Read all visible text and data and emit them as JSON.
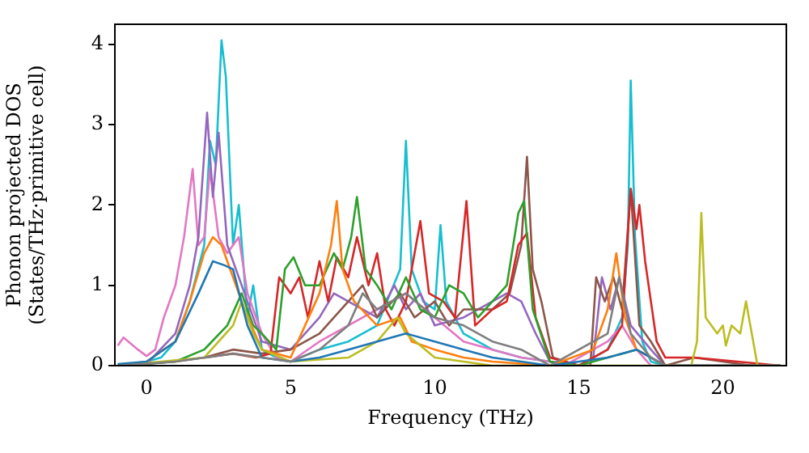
{
  "chart_data": {
    "type": "line",
    "xlabel": "Frequency (THz)",
    "ylabel": "Phonon projected DOS\n(States/THz·primitive cell)",
    "xlim": [
      -1.1,
      22.2
    ],
    "xticks": [
      0,
      5,
      10,
      15,
      20
    ],
    "ylim": [
      0,
      4.25
    ],
    "yticks": [
      0,
      1,
      2,
      3,
      4
    ],
    "grid": false,
    "legend": false,
    "marker": "none",
    "line_style": "solid",
    "series": [
      {
        "color": "#7f7f7f",
        "x": [
          -1,
          1,
          2,
          3,
          4,
          5,
          6,
          7,
          7.5,
          8,
          9,
          10,
          11,
          12,
          13,
          14,
          16,
          16.4,
          16.8,
          17.5,
          18,
          22
        ],
        "values": [
          0,
          0.05,
          0.1,
          0.15,
          0.1,
          0.05,
          0.2,
          0.5,
          0.9,
          0.7,
          0.9,
          0.6,
          0.5,
          0.3,
          0.2,
          0,
          0.4,
          1.1,
          0.4,
          0.1,
          0,
          0
        ]
      },
      {
        "color": "#1f77b4",
        "x": [
          -1,
          0,
          1,
          1.8,
          2.3,
          2.7,
          3,
          3.5,
          4,
          5,
          6,
          7,
          8,
          9,
          10,
          11,
          12,
          14,
          16,
          17,
          18,
          22
        ],
        "values": [
          0.02,
          0.05,
          0.3,
          0.9,
          1.3,
          1.25,
          1.2,
          0.5,
          0.1,
          0.05,
          0.1,
          0.2,
          0.3,
          0.4,
          0.3,
          0.2,
          0.1,
          0,
          0.1,
          0.2,
          0,
          0
        ]
      },
      {
        "color": "#bcbd22",
        "x": [
          -1,
          2,
          3,
          3.3,
          3.7,
          4,
          5,
          7,
          8,
          8.7,
          9,
          10,
          12,
          18.9,
          19.1,
          19.25,
          19.4,
          19.8,
          20,
          20.1,
          20.3,
          20.6,
          20.8,
          21,
          21.2,
          22
        ],
        "values": [
          0,
          0.1,
          0.5,
          0.8,
          0.4,
          0.2,
          0.05,
          0.1,
          0.3,
          0.6,
          0.4,
          0.1,
          0,
          0,
          0.3,
          1.9,
          0.6,
          0.4,
          0.5,
          0.25,
          0.5,
          0.4,
          0.8,
          0.4,
          0,
          0
        ]
      },
      {
        "color": "#ff7f0e",
        "x": [
          -1,
          0,
          1,
          1.5,
          2,
          2.3,
          2.6,
          3,
          3.4,
          4,
          5,
          6,
          6.4,
          6.6,
          6.8,
          7.2,
          8,
          8.8,
          9.2,
          10,
          11,
          12,
          14,
          15.5,
          16,
          16.3,
          16.6,
          17,
          18,
          22
        ],
        "values": [
          0,
          0.05,
          0.3,
          0.8,
          1.4,
          1.6,
          1.5,
          1.1,
          0.7,
          0.2,
          0.1,
          0.9,
          1.5,
          2.05,
          1.2,
          0.8,
          0.5,
          0.6,
          0.3,
          0.2,
          0.1,
          0.05,
          0,
          0.2,
          0.7,
          1.4,
          0.6,
          0.2,
          0,
          0
        ]
      },
      {
        "color": "#2ca02c",
        "x": [
          -1,
          1,
          2,
          2.8,
          3.3,
          3.7,
          4,
          4.5,
          4.8,
          5.1,
          5.5,
          6,
          6.5,
          6.8,
          7.1,
          7.3,
          7.6,
          8,
          8.5,
          9,
          9.5,
          10,
          10.5,
          11,
          11.5,
          12,
          12.5,
          12.9,
          13.1,
          13.4,
          14,
          15,
          16,
          17,
          18,
          22
        ],
        "values": [
          0,
          0.05,
          0.2,
          0.5,
          0.9,
          0.5,
          0.4,
          0.2,
          1.2,
          1.35,
          1.0,
          1.0,
          1.4,
          1.2,
          1.6,
          2.1,
          1.2,
          1.0,
          0.7,
          1.1,
          0.7,
          0.6,
          1.0,
          0.9,
          0.6,
          0.8,
          1.0,
          1.9,
          2.05,
          0.7,
          0.05,
          0,
          0.1,
          0.2,
          0,
          0
        ]
      },
      {
        "color": "#d62728",
        "x": [
          2,
          3,
          3.8,
          4.3,
          4.6,
          5,
          5.3,
          5.6,
          6,
          6.3,
          6.6,
          7,
          7.3,
          7.7,
          8,
          8.3,
          8.6,
          9,
          9.5,
          9.8,
          10.3,
          10.7,
          11.1,
          11.4,
          12,
          12.5,
          12.9,
          13.2,
          13.5,
          14,
          15,
          16,
          16.5,
          16.8,
          17,
          17.1,
          17.3,
          17.7,
          18,
          19,
          22
        ],
        "values": [
          0.1,
          0.15,
          0.1,
          0.15,
          1.1,
          0.9,
          1.1,
          0.6,
          1.3,
          0.8,
          1.35,
          1.1,
          1.6,
          1.0,
          1.4,
          0.7,
          0.5,
          0.8,
          1.8,
          0.9,
          0.8,
          0.6,
          2.05,
          0.5,
          0.7,
          0.8,
          1.5,
          1.65,
          0.6,
          0.1,
          0,
          0.2,
          0.5,
          2.2,
          1.7,
          2.0,
          1.3,
          0.3,
          0.1,
          0.1,
          0
        ]
      },
      {
        "color": "#8c564b",
        "x": [
          -1,
          0,
          1,
          2,
          3,
          4,
          5,
          6,
          7,
          7.5,
          8,
          8.8,
          9.3,
          10,
          10.5,
          11,
          12,
          12.6,
          13,
          13.2,
          13.4,
          13.7,
          14.1,
          15,
          15.4,
          15.6,
          15.9,
          16.2,
          16.5,
          16.8,
          17.1,
          17.5,
          18,
          19,
          21,
          22
        ],
        "values": [
          0,
          0.02,
          0.05,
          0.1,
          0.2,
          0.15,
          0.2,
          0.4,
          0.8,
          1.0,
          0.6,
          0.9,
          0.6,
          0.8,
          0.5,
          0.7,
          0.7,
          0.9,
          1.5,
          2.6,
          1.2,
          0.8,
          0.1,
          0,
          0,
          1.1,
          0.8,
          1.1,
          0.7,
          2.2,
          0.5,
          0.3,
          0,
          0.1,
          0,
          0
        ]
      },
      {
        "color": "#9467bd",
        "x": [
          -1,
          0,
          1,
          1.5,
          1.8,
          2.1,
          2.3,
          2.5,
          2.8,
          3.1,
          3.5,
          4,
          5,
          6,
          6.5,
          7,
          8,
          8.6,
          9,
          9.5,
          10,
          11,
          12,
          12.5,
          13,
          13.5,
          14,
          15,
          15.5,
          15.8,
          16.1,
          16.4,
          16.8,
          17.5,
          18,
          22
        ],
        "values": [
          0,
          0.02,
          0.4,
          1.0,
          1.6,
          3.15,
          2.1,
          2.9,
          1.5,
          1.2,
          0.8,
          0.3,
          0.2,
          0.6,
          0.9,
          0.8,
          0.6,
          1.0,
          0.7,
          0.9,
          0.5,
          0.6,
          0.8,
          0.9,
          0.8,
          0.4,
          0.05,
          0,
          0.1,
          1.1,
          0.7,
          1.1,
          0.5,
          0.2,
          0,
          0
        ]
      },
      {
        "color": "#e377c2",
        "x": [
          -1,
          -0.8,
          -0.3,
          0,
          0.3,
          0.6,
          1,
          1.3,
          1.6,
          1.8,
          2,
          2.2,
          2.5,
          2.8,
          3.2,
          3.5,
          4,
          4.5,
          5,
          6,
          7,
          8,
          9,
          10,
          11,
          12,
          13,
          14,
          14.5,
          16,
          16.5,
          17,
          17.5,
          22
        ],
        "values": [
          0.25,
          0.35,
          0.2,
          0.12,
          0.2,
          0.6,
          1.0,
          1.6,
          2.45,
          1.5,
          1.6,
          2.45,
          1.6,
          1.4,
          1.6,
          0.9,
          0.4,
          0.1,
          0.05,
          0.3,
          0.5,
          0.7,
          0.9,
          0.6,
          0.3,
          0.2,
          0.1,
          0.05,
          0,
          0.3,
          0.5,
          0.2,
          0,
          0
        ]
      },
      {
        "color": "#17becf",
        "x": [
          -1,
          0,
          0.5,
          1,
          1.5,
          2,
          2.2,
          2.4,
          2.6,
          2.75,
          3,
          3.2,
          3.5,
          3.7,
          4,
          4.5,
          5,
          6,
          7,
          8,
          8.8,
          9,
          9.2,
          9.6,
          10,
          10.2,
          10.4,
          11,
          12,
          13,
          14,
          14.5,
          15,
          15.5,
          16,
          16.5,
          16.7,
          16.8,
          16.95,
          17.2,
          17.5,
          18,
          22
        ],
        "values": [
          0,
          0.05,
          0.1,
          0.3,
          0.8,
          1.5,
          2.8,
          2.5,
          4.05,
          3.6,
          1.5,
          2.0,
          0.6,
          1.0,
          0.2,
          0.1,
          0.05,
          0.2,
          0.3,
          0.5,
          1.2,
          2.8,
          1.2,
          0.8,
          0.7,
          1.75,
          0.8,
          0.4,
          0.2,
          0.1,
          0.05,
          0,
          0,
          0.1,
          0.2,
          0.6,
          1.5,
          3.55,
          1.6,
          0.3,
          0.05,
          0,
          0
        ]
      }
    ]
  }
}
